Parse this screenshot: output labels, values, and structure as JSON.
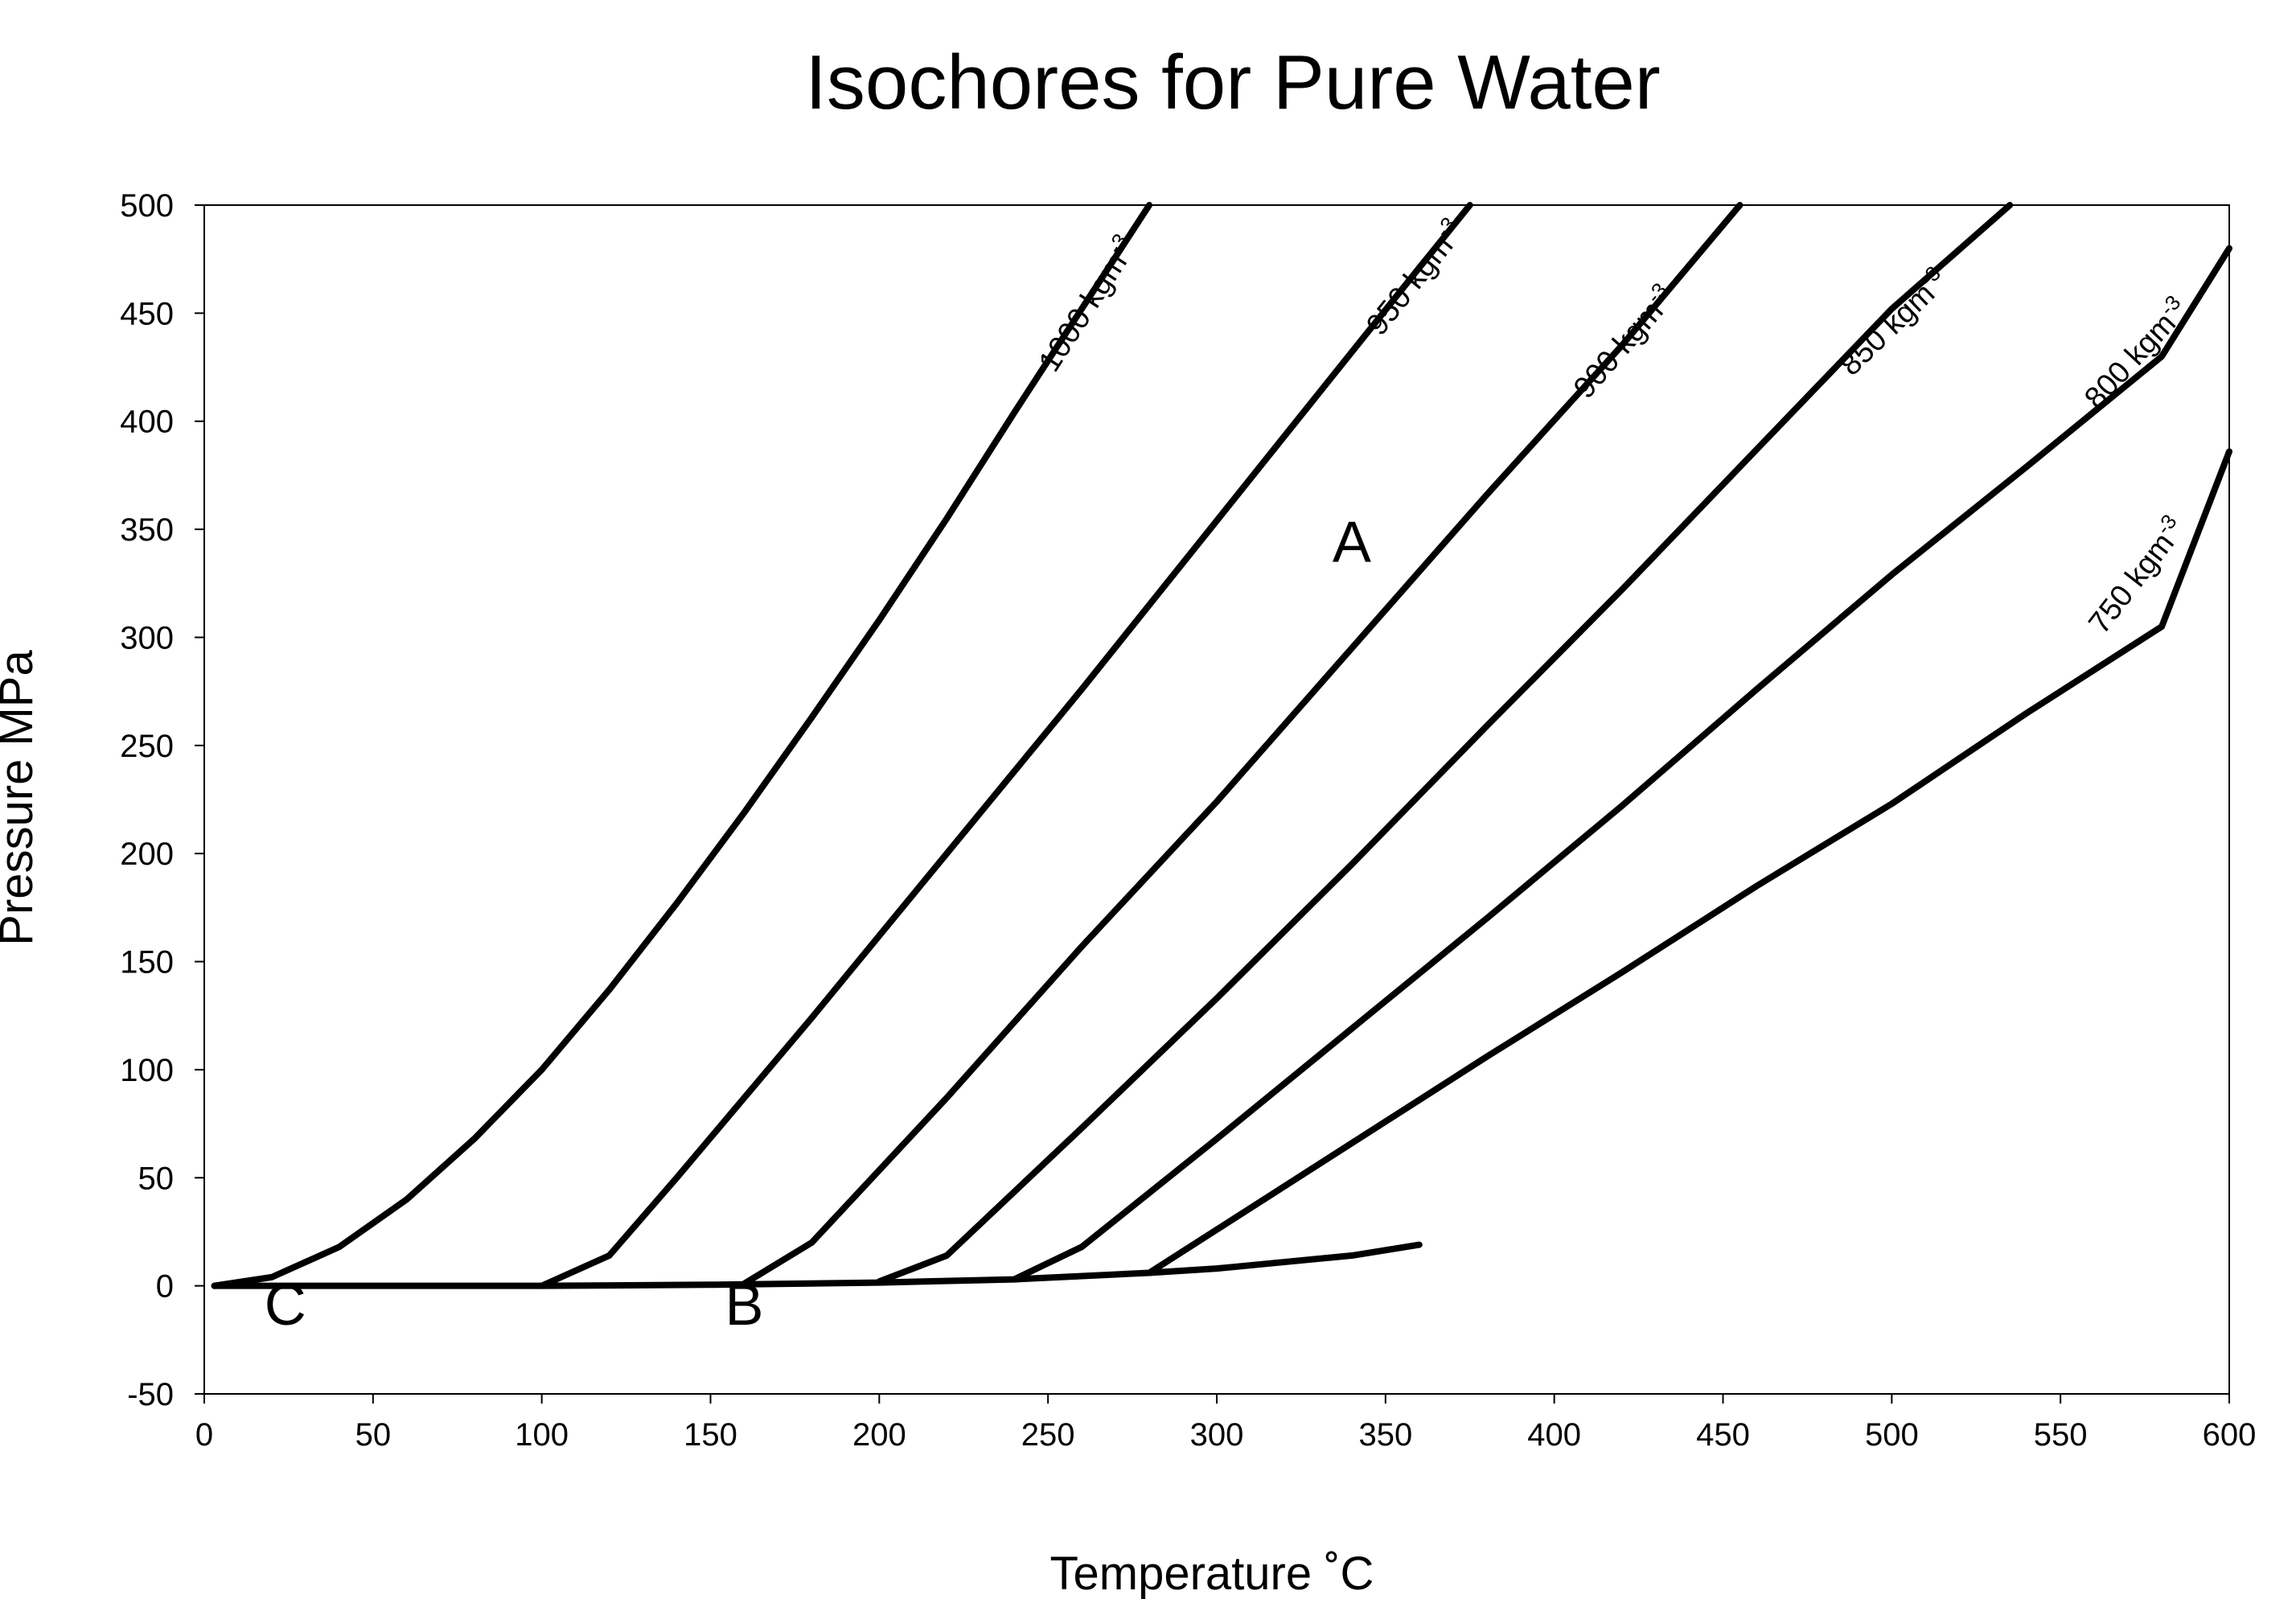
{
  "chart_data": {
    "type": "line",
    "title": "Isochores for Pure Water",
    "xlabel": "Temperature ˚C",
    "ylabel": "Pressure MPa",
    "xlim": [
      0,
      600
    ],
    "ylim": [
      -50,
      500
    ],
    "xticks": [
      0,
      50,
      100,
      150,
      200,
      250,
      300,
      350,
      400,
      450,
      500,
      550,
      600
    ],
    "yticks": [
      -50,
      0,
      50,
      100,
      150,
      200,
      250,
      300,
      350,
      400,
      450,
      500
    ],
    "grid": false,
    "legend": "none",
    "series": [
      {
        "name": "1000 kgm-3",
        "label": "1000 kgm",
        "label_sup": "-3",
        "points": [
          [
            3,
            0
          ],
          [
            20,
            4
          ],
          [
            40,
            18
          ],
          [
            60,
            40
          ],
          [
            80,
            68
          ],
          [
            100,
            100
          ],
          [
            120,
            137
          ],
          [
            140,
            177
          ],
          [
            160,
            219
          ],
          [
            180,
            263
          ],
          [
            200,
            308
          ],
          [
            220,
            355
          ],
          [
            240,
            404
          ],
          [
            260,
            452
          ],
          [
            280,
            500
          ]
        ]
      },
      {
        "name": "950 kgm-3",
        "label": "950 kgm",
        "label_sup": "-3",
        "points": [
          [
            100,
            0
          ],
          [
            120,
            14
          ],
          [
            140,
            50
          ],
          [
            160,
            87
          ],
          [
            180,
            124
          ],
          [
            200,
            162
          ],
          [
            220,
            200
          ],
          [
            240,
            238
          ],
          [
            260,
            276
          ],
          [
            280,
            315
          ],
          [
            300,
            354
          ],
          [
            320,
            393
          ],
          [
            340,
            432
          ],
          [
            360,
            471
          ],
          [
            375,
            500
          ]
        ]
      },
      {
        "name": "900 kgm-3",
        "label": "900 kgm",
        "label_sup": "-3",
        "points": [
          [
            160,
            1
          ],
          [
            180,
            20
          ],
          [
            220,
            87
          ],
          [
            260,
            157
          ],
          [
            300,
            224
          ],
          [
            340,
            295
          ],
          [
            380,
            366
          ],
          [
            420,
            435
          ],
          [
            455,
            500
          ]
        ]
      },
      {
        "name": "850 kgm-3",
        "label": "850 kgm",
        "label_sup": "-3",
        "points": [
          [
            200,
            2
          ],
          [
            220,
            14
          ],
          [
            260,
            73
          ],
          [
            300,
            133
          ],
          [
            340,
            195
          ],
          [
            380,
            259
          ],
          [
            420,
            322
          ],
          [
            460,
            387
          ],
          [
            500,
            452
          ],
          [
            535,
            500
          ]
        ]
      },
      {
        "name": "800 kgm-3",
        "label": "800 kgm",
        "label_sup": "-3",
        "points": [
          [
            240,
            3
          ],
          [
            260,
            18
          ],
          [
            300,
            68
          ],
          [
            340,
            119
          ],
          [
            380,
            170
          ],
          [
            420,
            222
          ],
          [
            460,
            276
          ],
          [
            500,
            329
          ],
          [
            540,
            379
          ],
          [
            580,
            430
          ],
          [
            600,
            480
          ]
        ]
      },
      {
        "name": "750 kgm-3",
        "label": "750 kgm",
        "label_sup": "-3",
        "points": [
          [
            280,
            6
          ],
          [
            300,
            26
          ],
          [
            340,
            66
          ],
          [
            380,
            106
          ],
          [
            420,
            145
          ],
          [
            460,
            185
          ],
          [
            500,
            223
          ],
          [
            540,
            265
          ],
          [
            580,
            305
          ],
          [
            600,
            386
          ]
        ]
      },
      {
        "name": "",
        "label": "",
        "label_sup": "",
        "points": [
          [
            3,
            0
          ],
          [
            100,
            0
          ],
          [
            150,
            0.5
          ],
          [
            200,
            1.5
          ],
          [
            240,
            3
          ],
          [
            280,
            6
          ],
          [
            300,
            8
          ],
          [
            320,
            11
          ],
          [
            340,
            14
          ],
          [
            360,
            19
          ]
        ]
      }
    ],
    "annotations": [
      {
        "text": "A",
        "x": 340,
        "y": 335
      },
      {
        "text": "B",
        "x": 160,
        "y": -18
      },
      {
        "text": "C",
        "x": 24,
        "y": -18
      }
    ]
  }
}
